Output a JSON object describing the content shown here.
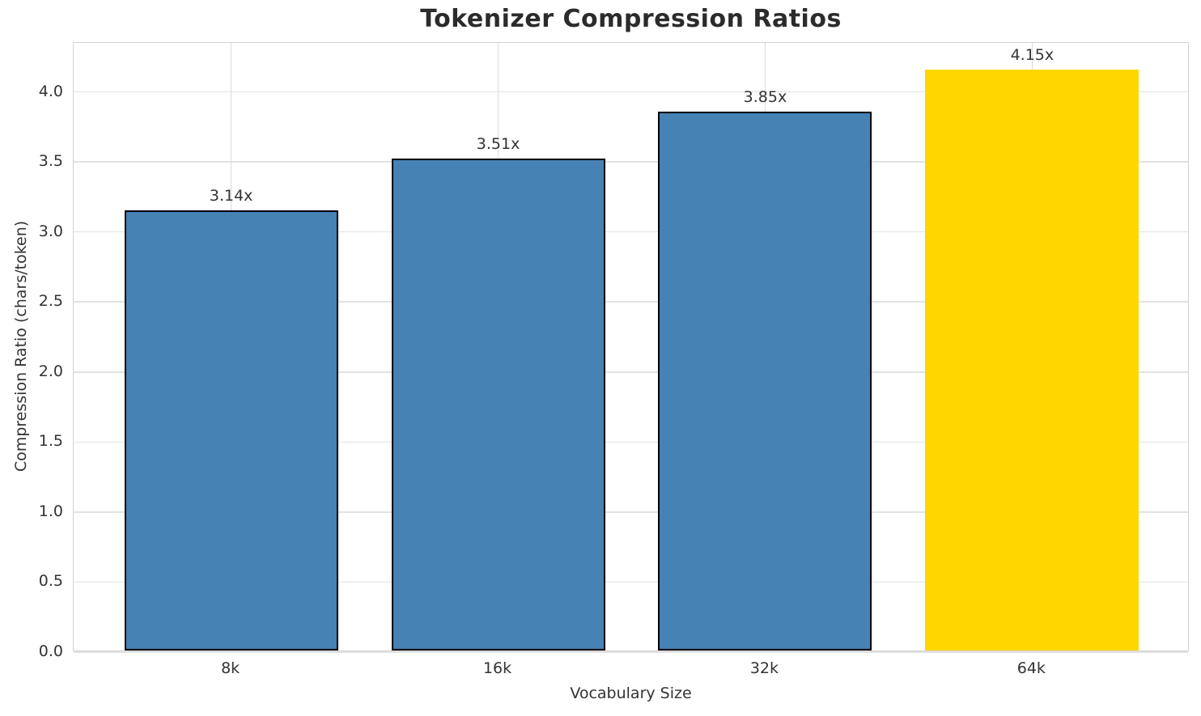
{
  "chart_data": {
    "type": "bar",
    "title": "Tokenizer Compression Ratios",
    "xlabel": "Vocabulary Size",
    "ylabel": "Compression Ratio (chars/token)",
    "categories": [
      "8k",
      "16k",
      "32k",
      "64k"
    ],
    "values": [
      3.14,
      3.51,
      3.85,
      4.15
    ],
    "bar_labels": [
      "3.14x",
      "3.51x",
      "3.85x",
      "4.15x"
    ],
    "yticks": [
      0.0,
      0.5,
      1.0,
      1.5,
      2.0,
      2.5,
      3.0,
      3.5,
      4.0
    ],
    "ylim": [
      0,
      4.35
    ],
    "grid": true,
    "legend_position": "none",
    "highlight_index": 3,
    "colors": {
      "bar": "#4682b4",
      "highlight": "#ffd700",
      "bar_edge": "#000000",
      "hgrid": "#e2e2e2",
      "vgrid": "#dcdcdc",
      "spine": "#d2d2d2",
      "title_text": "#2b2b2b",
      "tick_text": "#333333"
    }
  }
}
